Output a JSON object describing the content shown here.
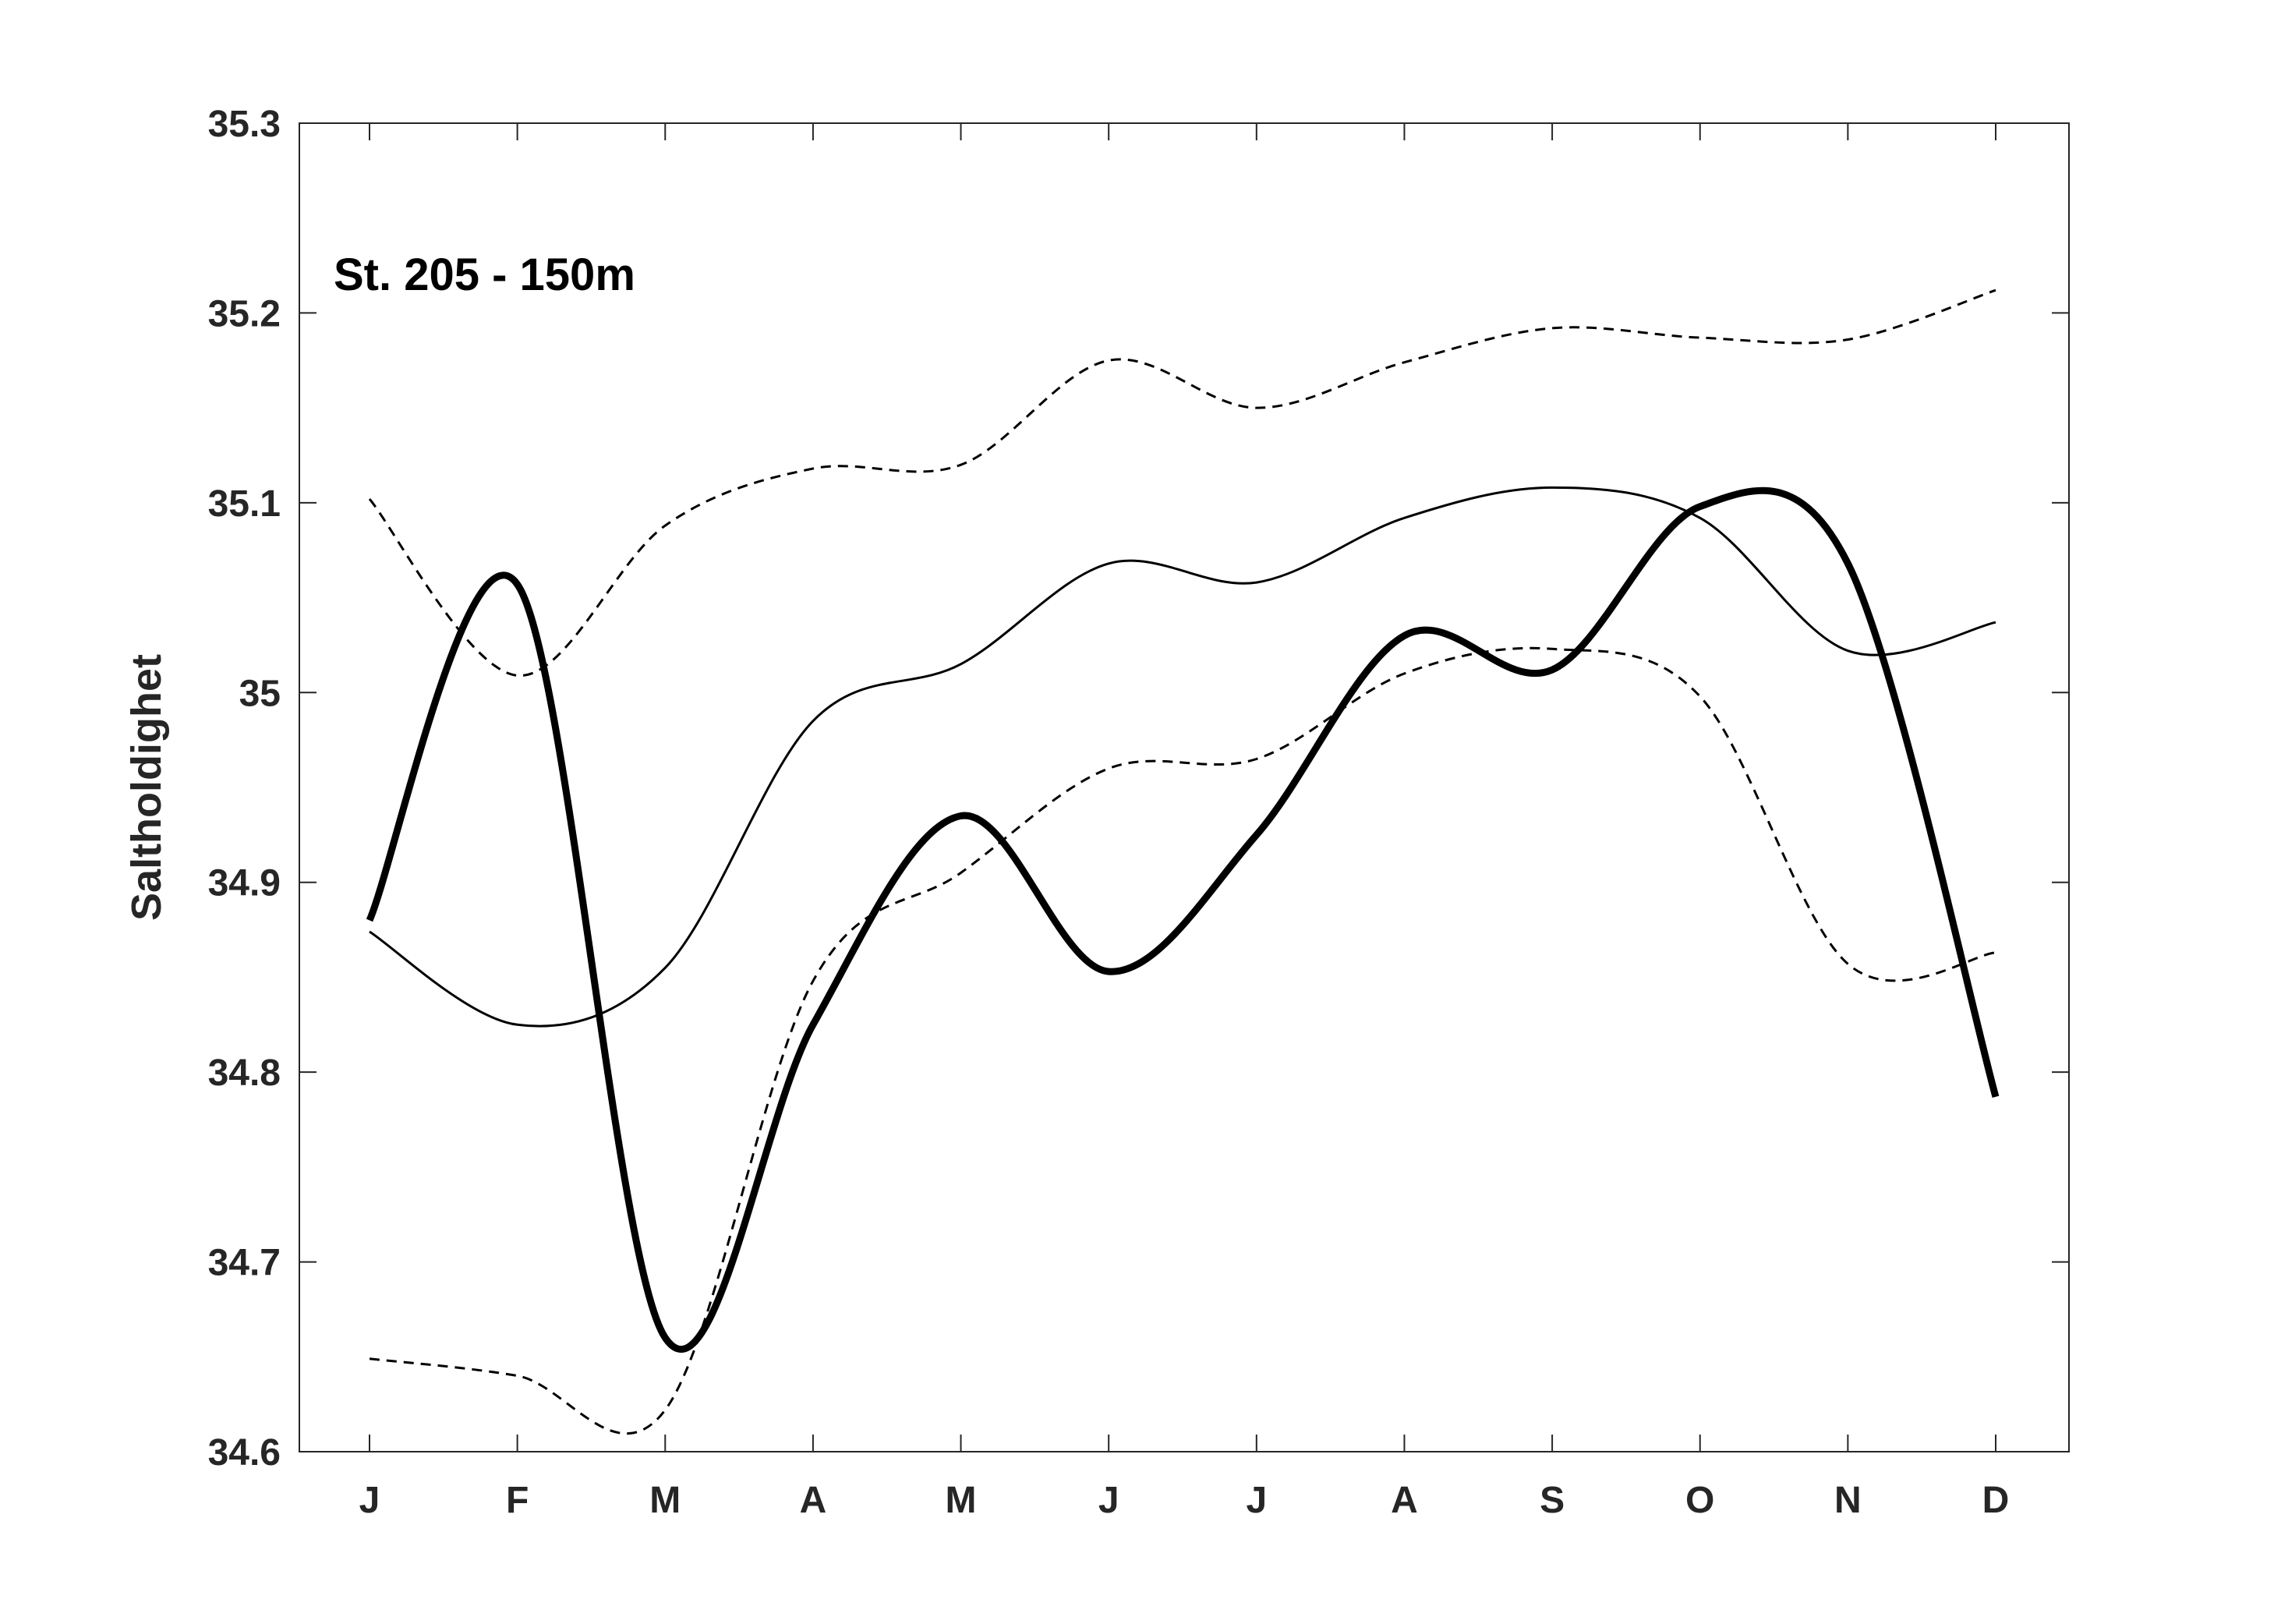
{
  "chart_data": {
    "type": "line",
    "title": "",
    "annotation": "St. 205 - 150m",
    "xlabel": "",
    "ylabel": "Saltholdighet",
    "categories": [
      "J",
      "F",
      "M",
      "A",
      "M",
      "J",
      "J",
      "A",
      "S",
      "O",
      "N",
      "D"
    ],
    "ylim": [
      34.6,
      35.3
    ],
    "yticks": [
      "34.6",
      "34.7",
      "34.8",
      "34.9",
      "35",
      "35.1",
      "35.2",
      "35.3"
    ],
    "grid": false,
    "series": [
      {
        "style": "thick-solid",
        "values": [
          34.88,
          35.057,
          34.66,
          34.825,
          34.935,
          34.853,
          34.925,
          35.03,
          35.012,
          35.098,
          35.068,
          34.787
        ]
      },
      {
        "style": "thin-solid",
        "values": [
          34.874,
          34.825,
          34.855,
          34.985,
          35.015,
          35.068,
          35.058,
          35.092,
          35.108,
          35.092,
          35.022,
          35.037
        ]
      },
      {
        "style": "dashed",
        "values": [
          35.102,
          35.009,
          35.088,
          35.118,
          35.12,
          35.175,
          35.15,
          35.174,
          35.192,
          35.187,
          35.186,
          35.212
        ]
      },
      {
        "style": "dashed",
        "values": [
          34.649,
          34.64,
          34.622,
          34.848,
          34.905,
          34.96,
          34.965,
          35.01,
          35.023,
          34.998,
          34.857,
          34.863
        ]
      }
    ],
    "colors": {
      "line": "#000000",
      "axis": "#262626"
    }
  }
}
